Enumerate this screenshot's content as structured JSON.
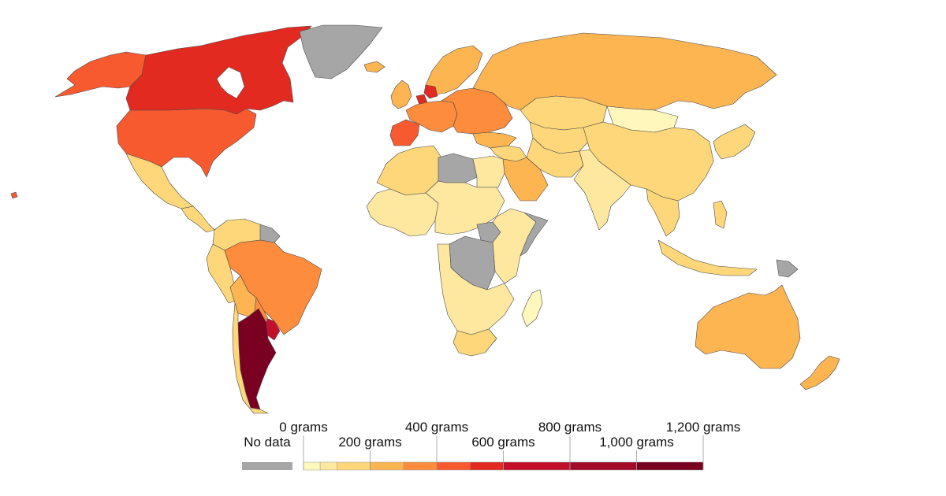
{
  "scale": {
    "colors": {
      "0-50": "#fff7bc",
      "50-100": "#fee8a0",
      "100-200": "#fdd77a",
      "200-300": "#fdb552",
      "300-400": "#fd8c3c",
      "400-500": "#f85a2f",
      "500-600": "#e32a21",
      "600-800": "#c3102a",
      "800-1000": "#a20a2a",
      "1000-1200": "#7a0021",
      "no_data": "#a6a6a6"
    }
  },
  "legend": {
    "no_data_label": "No data",
    "no_data_color": "#a6a6a6",
    "top_labels": [
      "0 grams",
      "400 grams",
      "800 grams",
      "1,200 grams"
    ],
    "bottom_labels": [
      "200 grams",
      "600 grams",
      "1,000 grams"
    ],
    "bins": [
      {
        "from": 0,
        "to": 50,
        "color": "#fff7bc"
      },
      {
        "from": 50,
        "to": 100,
        "color": "#fee8a0"
      },
      {
        "from": 100,
        "to": 200,
        "color": "#fdd77a"
      },
      {
        "from": 200,
        "to": 300,
        "color": "#fdb552"
      },
      {
        "from": 300,
        "to": 400,
        "color": "#fd8c3c"
      },
      {
        "from": 400,
        "to": 500,
        "color": "#f85a2f"
      },
      {
        "from": 500,
        "to": 600,
        "color": "#e32a21"
      },
      {
        "from": 600,
        "to": 800,
        "color": "#c3102a"
      },
      {
        "from": 800,
        "to": 1000,
        "color": "#a20a2a"
      },
      {
        "from": 1000,
        "to": 1200,
        "color": "#7a0021"
      }
    ],
    "range": [
      0,
      1200
    ]
  },
  "regions": [
    {
      "id": "canada",
      "bin": "500-600"
    },
    {
      "id": "alaska",
      "bin": "400-500"
    },
    {
      "id": "usa",
      "bin": "400-500"
    },
    {
      "id": "greenland",
      "bin": "no_data"
    },
    {
      "id": "mexico",
      "bin": "100-200"
    },
    {
      "id": "central-america",
      "bin": "100-200"
    },
    {
      "id": "colombia-venezuela",
      "bin": "100-200"
    },
    {
      "id": "guianas",
      "bin": "no_data"
    },
    {
      "id": "peru-ecuador",
      "bin": "100-200"
    },
    {
      "id": "brazil",
      "bin": "300-400"
    },
    {
      "id": "bolivia",
      "bin": "200-300"
    },
    {
      "id": "paraguay",
      "bin": "300-400"
    },
    {
      "id": "uruguay",
      "bin": "600-800"
    },
    {
      "id": "argentina",
      "bin": "1000-1200"
    },
    {
      "id": "chile",
      "bin": "100-200"
    },
    {
      "id": "iceland",
      "bin": "200-300"
    },
    {
      "id": "uk-ireland",
      "bin": "200-300"
    },
    {
      "id": "scandinavia",
      "bin": "200-300"
    },
    {
      "id": "western-europe",
      "bin": "300-400"
    },
    {
      "id": "netherlands",
      "bin": "500-600"
    },
    {
      "id": "denmark",
      "bin": "500-600"
    },
    {
      "id": "iberia",
      "bin": "400-500"
    },
    {
      "id": "eastern-europe",
      "bin": "300-400"
    },
    {
      "id": "russia",
      "bin": "200-300"
    },
    {
      "id": "kazakhstan",
      "bin": "100-200"
    },
    {
      "id": "central-asia",
      "bin": "100-200"
    },
    {
      "id": "turkey",
      "bin": "200-300"
    },
    {
      "id": "mongolia",
      "bin": "0-50"
    },
    {
      "id": "china",
      "bin": "100-200"
    },
    {
      "id": "korea-japan",
      "bin": "100-200"
    },
    {
      "id": "middle-east",
      "bin": "100-200"
    },
    {
      "id": "saudi-arabia",
      "bin": "200-300"
    },
    {
      "id": "iran-afghanistan",
      "bin": "100-200"
    },
    {
      "id": "south-asia",
      "bin": "50-100"
    },
    {
      "id": "southeast-asia",
      "bin": "100-200"
    },
    {
      "id": "indonesia",
      "bin": "100-200"
    },
    {
      "id": "papua",
      "bin": "no_data"
    },
    {
      "id": "philippines",
      "bin": "100-200"
    },
    {
      "id": "north-africa",
      "bin": "100-200"
    },
    {
      "id": "libya",
      "bin": "no_data"
    },
    {
      "id": "egypt",
      "bin": "50-100"
    },
    {
      "id": "west-africa",
      "bin": "50-100"
    },
    {
      "id": "central-africa",
      "bin": "50-100"
    },
    {
      "id": "drc",
      "bin": "no_data"
    },
    {
      "id": "south-sudan",
      "bin": "no_data"
    },
    {
      "id": "east-africa",
      "bin": "50-100"
    },
    {
      "id": "somalia",
      "bin": "no_data"
    },
    {
      "id": "southern-africa",
      "bin": "50-100"
    },
    {
      "id": "south-africa",
      "bin": "100-200"
    },
    {
      "id": "madagascar",
      "bin": "0-50"
    },
    {
      "id": "australia",
      "bin": "200-300"
    },
    {
      "id": "new-zealand",
      "bin": "200-300"
    },
    {
      "id": "hawaii",
      "bin": "400-500"
    }
  ]
}
